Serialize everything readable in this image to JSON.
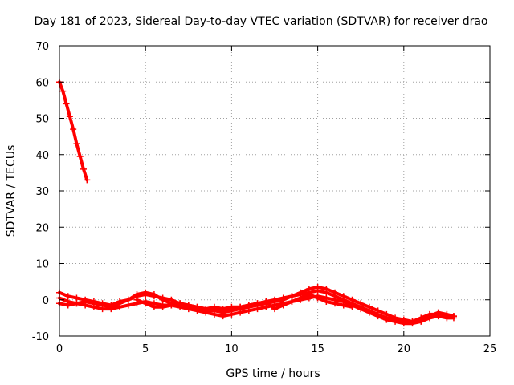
{
  "chart_data": {
    "type": "scatter",
    "title": "Day 181 of 2023, Sidereal Day-to-day VTEC variation (SDTVAR) for receiver drao",
    "xlabel": "GPS time / hours",
    "ylabel": "SDTVAR / TECUs",
    "xlim": [
      0,
      25
    ],
    "ylim": [
      -10,
      70
    ],
    "xticks": [
      0,
      5,
      10,
      15,
      20,
      25
    ],
    "yticks": [
      -10,
      0,
      10,
      20,
      30,
      40,
      50,
      60,
      70
    ],
    "grid": true,
    "marker": "+",
    "series": [
      {
        "name": "drao",
        "color": "#ff0000",
        "segments": [
          [
            [
              0.0,
              60.0
            ],
            [
              0.2,
              57.5
            ],
            [
              0.4,
              54.0
            ],
            [
              0.6,
              50.5
            ],
            [
              0.8,
              47.0
            ],
            [
              1.0,
              43.0
            ],
            [
              1.2,
              39.5
            ],
            [
              1.4,
              36.0
            ],
            [
              1.6,
              33.0
            ]
          ],
          [
            [
              0.0,
              2.0
            ],
            [
              0.5,
              1.0
            ],
            [
              1.0,
              0.5
            ],
            [
              1.5,
              0.0
            ],
            [
              2.0,
              -0.5
            ],
            [
              2.5,
              -1.0
            ],
            [
              3.0,
              -1.5
            ],
            [
              3.5,
              -0.5
            ],
            [
              4.0,
              0.0
            ],
            [
              4.5,
              1.0
            ],
            [
              5.0,
              1.5
            ],
            [
              5.5,
              1.0
            ],
            [
              6.0,
              0.5
            ],
            [
              6.5,
              0.0
            ],
            [
              7.0,
              -1.0
            ],
            [
              7.5,
              -1.5
            ],
            [
              8.0,
              -2.0
            ],
            [
              8.5,
              -2.5
            ],
            [
              9.0,
              -2.5
            ],
            [
              9.5,
              -3.0
            ],
            [
              10.0,
              -2.5
            ],
            [
              10.5,
              -2.0
            ],
            [
              11.0,
              -1.5
            ],
            [
              11.5,
              -1.0
            ],
            [
              12.0,
              -0.5
            ],
            [
              12.5,
              0.0
            ],
            [
              13.0,
              0.5
            ],
            [
              13.5,
              1.0
            ],
            [
              14.0,
              2.0
            ],
            [
              14.5,
              3.0
            ],
            [
              15.0,
              3.5
            ],
            [
              15.5,
              3.0
            ],
            [
              16.0,
              2.0
            ],
            [
              16.5,
              1.0
            ],
            [
              17.0,
              0.0
            ],
            [
              17.5,
              -1.0
            ],
            [
              18.0,
              -2.0
            ],
            [
              18.5,
              -3.0
            ],
            [
              19.0,
              -4.0
            ],
            [
              19.5,
              -5.0
            ],
            [
              20.0,
              -5.5
            ],
            [
              20.5,
              -6.0
            ],
            [
              21.0,
              -5.5
            ],
            [
              21.5,
              -4.5
            ],
            [
              22.0,
              -3.5
            ],
            [
              22.5,
              -4.0
            ],
            [
              22.9,
              -4.5
            ]
          ],
          [
            [
              0.0,
              0.5
            ],
            [
              0.5,
              -0.5
            ],
            [
              1.0,
              -1.0
            ],
            [
              1.5,
              -1.5
            ],
            [
              2.0,
              -2.0
            ],
            [
              2.5,
              -2.5
            ],
            [
              3.0,
              -2.5
            ],
            [
              3.5,
              -2.0
            ],
            [
              4.0,
              -1.5
            ],
            [
              4.5,
              -1.0
            ],
            [
              5.0,
              -0.5
            ],
            [
              5.5,
              -1.0
            ],
            [
              6.0,
              -1.5
            ],
            [
              6.5,
              -1.5
            ],
            [
              7.0,
              -2.0
            ],
            [
              7.5,
              -2.5
            ],
            [
              8.0,
              -3.0
            ],
            [
              8.5,
              -3.5
            ],
            [
              9.0,
              -4.0
            ],
            [
              9.5,
              -4.5
            ],
            [
              10.0,
              -4.0
            ],
            [
              10.5,
              -3.5
            ],
            [
              11.0,
              -3.0
            ],
            [
              11.5,
              -2.5
            ],
            [
              12.0,
              -2.0
            ],
            [
              12.5,
              -1.5
            ],
            [
              13.0,
              -1.0
            ],
            [
              13.5,
              -0.5
            ],
            [
              14.0,
              0.0
            ],
            [
              14.5,
              0.5
            ],
            [
              15.0,
              1.0
            ],
            [
              15.5,
              0.5
            ],
            [
              16.0,
              0.0
            ],
            [
              16.5,
              -0.5
            ],
            [
              17.0,
              -1.5
            ],
            [
              17.5,
              -2.5
            ],
            [
              18.0,
              -3.5
            ],
            [
              18.5,
              -4.5
            ],
            [
              19.0,
              -5.5
            ],
            [
              19.5,
              -6.0
            ],
            [
              20.0,
              -6.5
            ],
            [
              20.5,
              -6.5
            ],
            [
              21.0,
              -6.0
            ],
            [
              21.5,
              -5.0
            ],
            [
              22.0,
              -4.5
            ],
            [
              22.5,
              -5.0
            ],
            [
              22.9,
              -5.0
            ]
          ],
          [
            [
              0.0,
              -1.0
            ],
            [
              0.5,
              -1.5
            ],
            [
              1.0,
              -1.0
            ],
            [
              1.5,
              -0.5
            ],
            [
              2.0,
              -1.0
            ],
            [
              2.5,
              -1.5
            ],
            [
              3.0,
              -2.0
            ],
            [
              3.5,
              -1.0
            ],
            [
              4.0,
              0.0
            ],
            [
              4.5,
              1.5
            ],
            [
              5.0,
              2.0
            ],
            [
              5.5,
              1.5
            ],
            [
              6.0,
              0.0
            ],
            [
              6.5,
              -1.0
            ],
            [
              7.0,
              -1.5
            ],
            [
              7.5,
              -2.0
            ],
            [
              8.0,
              -2.5
            ],
            [
              8.5,
              -3.0
            ],
            [
              9.0,
              -3.0
            ],
            [
              9.5,
              -3.5
            ],
            [
              10.0,
              -3.0
            ],
            [
              10.5,
              -2.5
            ],
            [
              11.0,
              -2.0
            ],
            [
              11.5,
              -1.5
            ],
            [
              12.0,
              -1.0
            ],
            [
              12.5,
              -0.5
            ],
            [
              13.0,
              0.0
            ],
            [
              13.5,
              1.0
            ],
            [
              14.0,
              1.5
            ],
            [
              14.5,
              2.0
            ],
            [
              15.0,
              2.5
            ],
            [
              15.5,
              2.0
            ],
            [
              16.0,
              1.0
            ],
            [
              16.5,
              0.0
            ],
            [
              17.0,
              -1.0
            ],
            [
              17.5,
              -2.0
            ],
            [
              18.0,
              -3.0
            ],
            [
              18.5,
              -4.0
            ],
            [
              19.0,
              -5.0
            ],
            [
              19.5,
              -5.5
            ],
            [
              20.0,
              -6.0
            ],
            [
              20.5,
              -6.0
            ],
            [
              21.0,
              -5.0
            ],
            [
              21.5,
              -4.0
            ],
            [
              22.0,
              -4.0
            ],
            [
              22.5,
              -4.5
            ],
            [
              22.9,
              -4.5
            ]
          ],
          [
            [
              4.5,
              0.0
            ],
            [
              5.0,
              -1.0
            ],
            [
              5.5,
              -2.0
            ],
            [
              6.0,
              -2.0
            ],
            [
              6.5,
              -1.5
            ],
            [
              7.0,
              -1.0
            ],
            [
              7.5,
              -1.5
            ],
            [
              8.0,
              -2.0
            ],
            [
              8.5,
              -2.5
            ],
            [
              9.0,
              -2.0
            ],
            [
              9.5,
              -2.5
            ],
            [
              10.0,
              -2.0
            ],
            [
              10.5,
              -2.0
            ],
            [
              11.0,
              -1.5
            ],
            [
              11.5,
              -1.0
            ],
            [
              12.0,
              -0.5
            ],
            [
              12.5,
              -2.5
            ],
            [
              13.0,
              -1.5
            ],
            [
              13.5,
              -0.5
            ],
            [
              14.0,
              0.5
            ],
            [
              14.5,
              1.5
            ],
            [
              15.0,
              0.5
            ],
            [
              15.5,
              -0.5
            ],
            [
              16.0,
              -1.0
            ],
            [
              16.5,
              -1.5
            ],
            [
              17.0,
              -2.0
            ]
          ]
        ]
      }
    ]
  }
}
